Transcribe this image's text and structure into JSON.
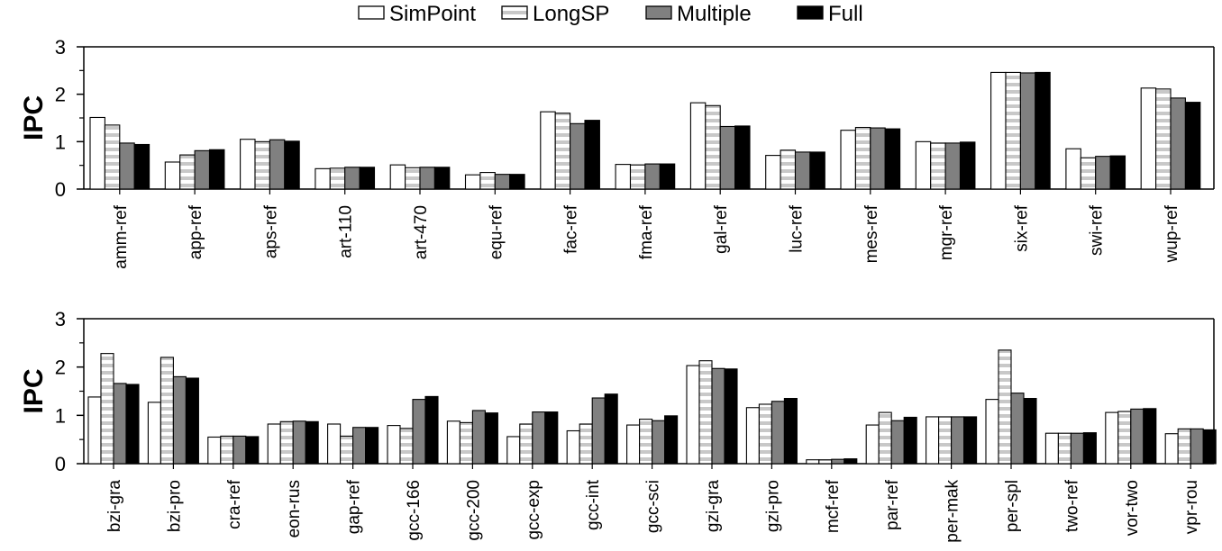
{
  "legend": [
    {
      "label": "SimPoint",
      "style": "white"
    },
    {
      "label": "LongSP",
      "style": "striped"
    },
    {
      "label": "Multiple",
      "style": "gray"
    },
    {
      "label": "Full",
      "style": "black"
    }
  ],
  "colors": {
    "white": "#ffffff",
    "stripe_light": "#c8c8c8",
    "gray": "#808080",
    "black": "#000000"
  },
  "chart_data": [
    {
      "type": "bar",
      "ylabel": "IPC",
      "ylim": [
        0,
        3
      ],
      "yticks": [
        "0",
        "1",
        "2",
        "3"
      ],
      "categories": [
        "amm-ref",
        "app-ref",
        "aps-ref",
        "art-110",
        "art-470",
        "equ-ref",
        "fac-ref",
        "fma-ref",
        "gal-ref",
        "luc-ref",
        "mes-ref",
        "mgr-ref",
        "six-ref",
        "swi-ref",
        "wup-ref"
      ],
      "series": [
        {
          "name": "SimPoint",
          "values": [
            1.51,
            0.57,
            1.05,
            0.43,
            0.51,
            0.3,
            1.63,
            0.52,
            1.82,
            0.71,
            1.24,
            1.0,
            2.46,
            0.85,
            2.13
          ]
        },
        {
          "name": "LongSP",
          "values": [
            1.35,
            0.72,
            1.0,
            0.44,
            0.45,
            0.35,
            1.6,
            0.51,
            1.76,
            0.82,
            1.3,
            0.97,
            2.46,
            0.66,
            2.11
          ]
        },
        {
          "name": "Multiple",
          "values": [
            0.97,
            0.81,
            1.04,
            0.46,
            0.46,
            0.31,
            1.38,
            0.53,
            1.32,
            0.78,
            1.29,
            0.97,
            2.45,
            0.69,
            1.92
          ]
        },
        {
          "name": "Full",
          "values": [
            0.94,
            0.83,
            1.01,
            0.46,
            0.46,
            0.31,
            1.45,
            0.53,
            1.33,
            0.78,
            1.27,
            0.99,
            2.46,
            0.7,
            1.83
          ]
        }
      ]
    },
    {
      "type": "bar",
      "ylabel": "IPC",
      "ylim": [
        0,
        3
      ],
      "yticks": [
        "0",
        "1",
        "2",
        "3"
      ],
      "categories": [
        "bzi-gra",
        "bzi-pro",
        "cra-ref",
        "eon-rus",
        "gap-ref",
        "gcc-166",
        "gcc-200",
        "gcc-exp",
        "gcc-int",
        "gcc-sci",
        "gzi-gra",
        "gzi-pro",
        "mcf-ref",
        "par-ref",
        "per-mak",
        "per-spl",
        "two-ref",
        "vor-two",
        "vpr-rou"
      ],
      "series": [
        {
          "name": "SimPoint",
          "values": [
            1.38,
            1.27,
            0.55,
            0.82,
            0.82,
            0.79,
            0.88,
            0.56,
            0.68,
            0.8,
            2.03,
            1.16,
            0.08,
            0.8,
            0.97,
            1.33,
            0.63,
            1.06,
            0.62
          ]
        },
        {
          "name": "LongSP",
          "values": [
            2.28,
            2.2,
            0.57,
            0.87,
            0.57,
            0.73,
            0.85,
            0.82,
            0.82,
            0.92,
            2.13,
            1.23,
            0.08,
            1.06,
            0.97,
            2.35,
            0.63,
            1.08,
            0.72
          ]
        },
        {
          "name": "Multiple",
          "values": [
            1.66,
            1.8,
            0.57,
            0.88,
            0.75,
            1.33,
            1.1,
            1.07,
            1.36,
            0.89,
            1.97,
            1.29,
            0.09,
            0.89,
            0.97,
            1.46,
            0.63,
            1.13,
            0.72
          ]
        },
        {
          "name": "Full",
          "values": [
            1.64,
            1.77,
            0.56,
            0.87,
            0.75,
            1.39,
            1.05,
            1.07,
            1.44,
            0.99,
            1.96,
            1.35,
            0.1,
            0.96,
            0.97,
            1.35,
            0.64,
            1.14,
            0.7
          ]
        }
      ]
    }
  ]
}
